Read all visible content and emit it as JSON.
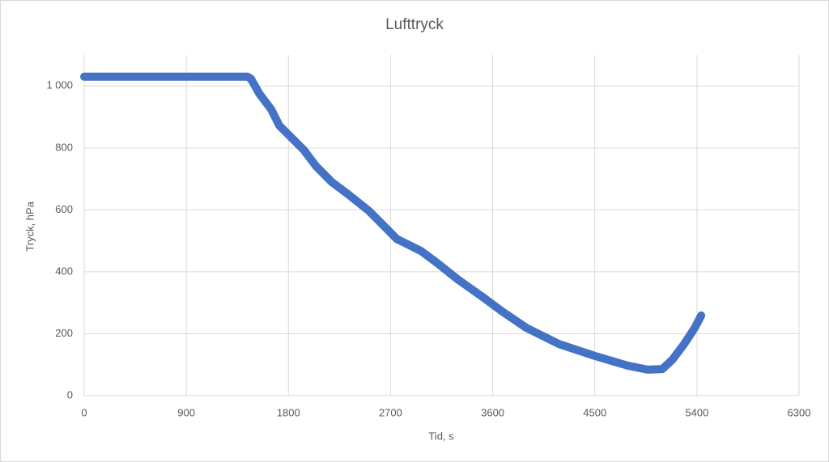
{
  "chart_data": {
    "type": "line",
    "title": "Lufttryck",
    "x_label": "Tid, s",
    "y_label": "Tryck, hPa",
    "series": [
      {
        "name": "Lufttryck",
        "color": "#4472c4",
        "x": [
          0,
          1440,
          1470,
          1542,
          1649,
          1720,
          1827,
          1934,
          2041,
          2184,
          2327,
          2505,
          2612,
          2755,
          2969,
          3112,
          3290,
          3540,
          3683,
          3897,
          4182,
          4503,
          4789,
          4967,
          5095,
          5181,
          5288,
          5381,
          5438
        ],
        "values": [
          1030,
          1030,
          1023,
          976,
          924,
          872,
          833,
          794,
          742,
          689,
          650,
          598,
          559,
          506,
          467,
          428,
          376,
          311,
          272,
          219,
          167,
          128,
          97,
          84,
          86,
          115,
          167,
          219,
          259
        ]
      }
    ],
    "xlim": [
      0,
      6300
    ],
    "xticks": [
      0,
      900,
      1800,
      2700,
      3600,
      4500,
      5400,
      6300
    ],
    "ylim": [
      0,
      1100
    ],
    "yticks": [
      0,
      200,
      400,
      600,
      800,
      {
        "value": 1000,
        "label": "1 000"
      }
    ],
    "grid": true
  }
}
